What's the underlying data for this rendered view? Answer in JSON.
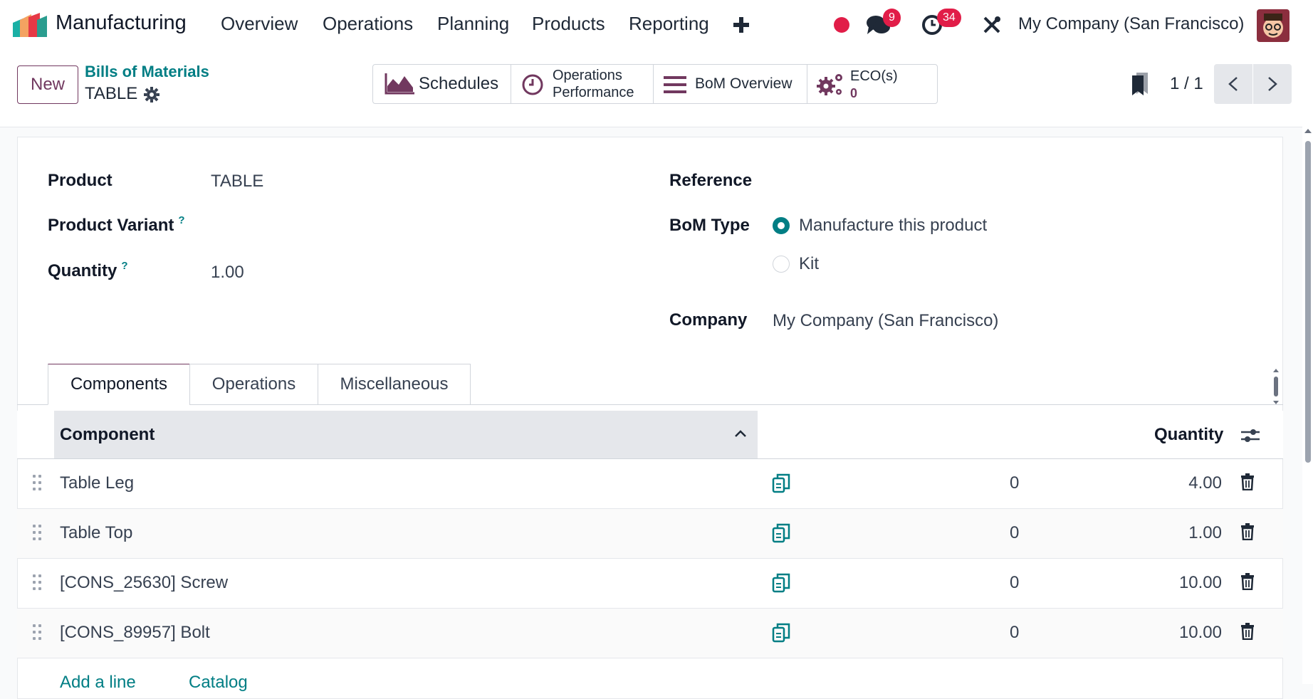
{
  "nav": {
    "app_name": "Manufacturing",
    "menu": [
      "Overview",
      "Operations",
      "Planning",
      "Products",
      "Reporting"
    ],
    "plus_icon": "plus-icon",
    "messages_count": "9",
    "activities_count": "34",
    "company": "My Company (San Francisco)"
  },
  "control": {
    "new_label": "New",
    "breadcrumb_parent": "Bills of Materials",
    "record_title": "TABLE",
    "smart_buttons": {
      "schedules": "Schedules",
      "ops_perf_line1": "Operations",
      "ops_perf_line2": "Performance",
      "bom_overview": "BoM Overview",
      "eco_label": "ECO(s)",
      "eco_count": "0"
    },
    "pager": "1 / 1"
  },
  "form": {
    "product_label": "Product",
    "product_value": "TABLE",
    "variant_label": "Product Variant",
    "quantity_label": "Quantity",
    "quantity_value": "1.00",
    "help_mark": "?",
    "reference_label": "Reference",
    "bom_type_label": "BoM Type",
    "bom_type_options": [
      "Manufacture this product",
      "Kit"
    ],
    "bom_type_selected": "Manufacture this product",
    "company_label": "Company",
    "company_value": "My Company (San Francisco)"
  },
  "tabs": [
    "Components",
    "Operations",
    "Miscellaneous"
  ],
  "active_tab": "Components",
  "table": {
    "col_component": "Component",
    "col_quantity": "Quantity",
    "rows": [
      {
        "component": "Table Leg",
        "zero": "0",
        "qty": "4.00"
      },
      {
        "component": "Table Top",
        "zero": "0",
        "qty": "1.00"
      },
      {
        "component": "[CONS_25630] Screw",
        "zero": "0",
        "qty": "10.00"
      },
      {
        "component": "[CONS_89957] Bolt",
        "zero": "0",
        "qty": "10.00"
      }
    ],
    "add_line": "Add a line",
    "catalog": "Catalog"
  },
  "colors": {
    "brand": "#71385f",
    "accent": "#017e84",
    "badge": "#e11d48"
  }
}
